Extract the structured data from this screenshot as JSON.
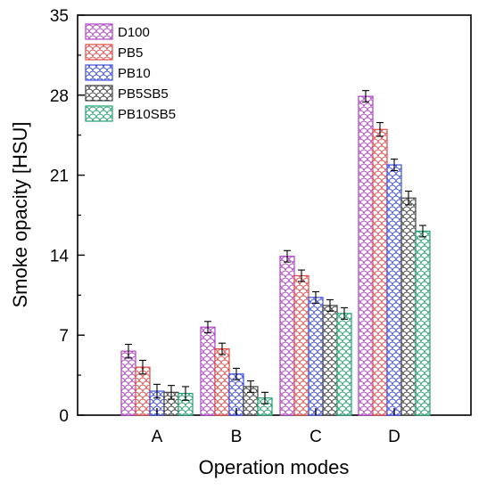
{
  "chart_data": {
    "type": "bar",
    "xlabel": "Operation modes",
    "ylabel": "Smoke opacity [HSU]",
    "categories": [
      "A",
      "B",
      "C",
      "D"
    ],
    "ylim": [
      0,
      35
    ],
    "yticks": [
      "0",
      "7",
      "14",
      "21",
      "28",
      "35"
    ],
    "grid": false,
    "legend_position": "top-left",
    "series": [
      {
        "name": "D100",
        "color": "#b040c8",
        "values": [
          5.6,
          7.7,
          13.9,
          27.9
        ],
        "errors": [
          0.6,
          0.5,
          0.5,
          0.5
        ]
      },
      {
        "name": "PB5",
        "color": "#e04848",
        "values": [
          4.2,
          5.8,
          12.2,
          25.0
        ],
        "errors": [
          0.6,
          0.5,
          0.5,
          0.6
        ]
      },
      {
        "name": "PB10",
        "color": "#3c4ce0",
        "values": [
          2.1,
          3.6,
          10.3,
          21.9
        ],
        "errors": [
          0.6,
          0.5,
          0.5,
          0.5
        ]
      },
      {
        "name": "PB5SB5",
        "color": "#404040",
        "values": [
          2.0,
          2.5,
          9.6,
          19.0
        ],
        "errors": [
          0.6,
          0.5,
          0.5,
          0.6
        ]
      },
      {
        "name": "PB10SB5",
        "color": "#20a070",
        "values": [
          1.9,
          1.5,
          8.9,
          16.1
        ],
        "errors": [
          0.6,
          0.5,
          0.5,
          0.5
        ]
      }
    ]
  }
}
